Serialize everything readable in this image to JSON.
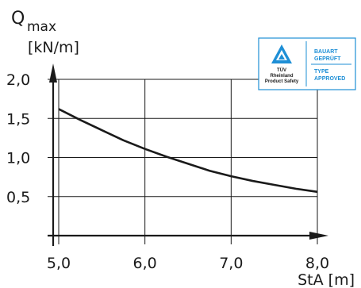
{
  "colors": {
    "ink": "#1a1a1a",
    "grid": "#1a1a1a",
    "badge_blue": "#1e8fd6",
    "badge_bg": "#ffffff"
  },
  "badge": {
    "brand_line1": "TÜV",
    "brand_line2": "Rheinland",
    "brand_line3": "Product Safety",
    "right_line1": "BAUART",
    "right_line2": "GEPRÜFT",
    "right_line3": "TYPE",
    "right_line4": "APPROVED"
  },
  "chart_data": {
    "type": "line",
    "y_title_main": "Q",
    "y_title_sub": "max",
    "y_unit": "[kN/m]",
    "x_label": "StA [m]",
    "xlim": [
      5.0,
      8.0
    ],
    "ylim": [
      0.0,
      2.0
    ],
    "x_ticks": [
      "5,0",
      "6,0",
      "7,0",
      "8,0"
    ],
    "y_ticks": [
      "0,5",
      "1,0",
      "1,5",
      "2,0"
    ],
    "x_tick_values": [
      5.0,
      6.0,
      7.0,
      8.0
    ],
    "y_tick_values": [
      0.5,
      1.0,
      1.5,
      2.0
    ],
    "grid": true,
    "series": [
      {
        "x": [
          5.0,
          5.25,
          5.5,
          5.75,
          6.0,
          6.25,
          6.5,
          6.75,
          7.0,
          7.25,
          7.5,
          7.75,
          8.0
        ],
        "y": [
          1.62,
          1.48,
          1.35,
          1.22,
          1.11,
          1.01,
          0.92,
          0.83,
          0.76,
          0.7,
          0.65,
          0.6,
          0.56
        ]
      }
    ]
  }
}
